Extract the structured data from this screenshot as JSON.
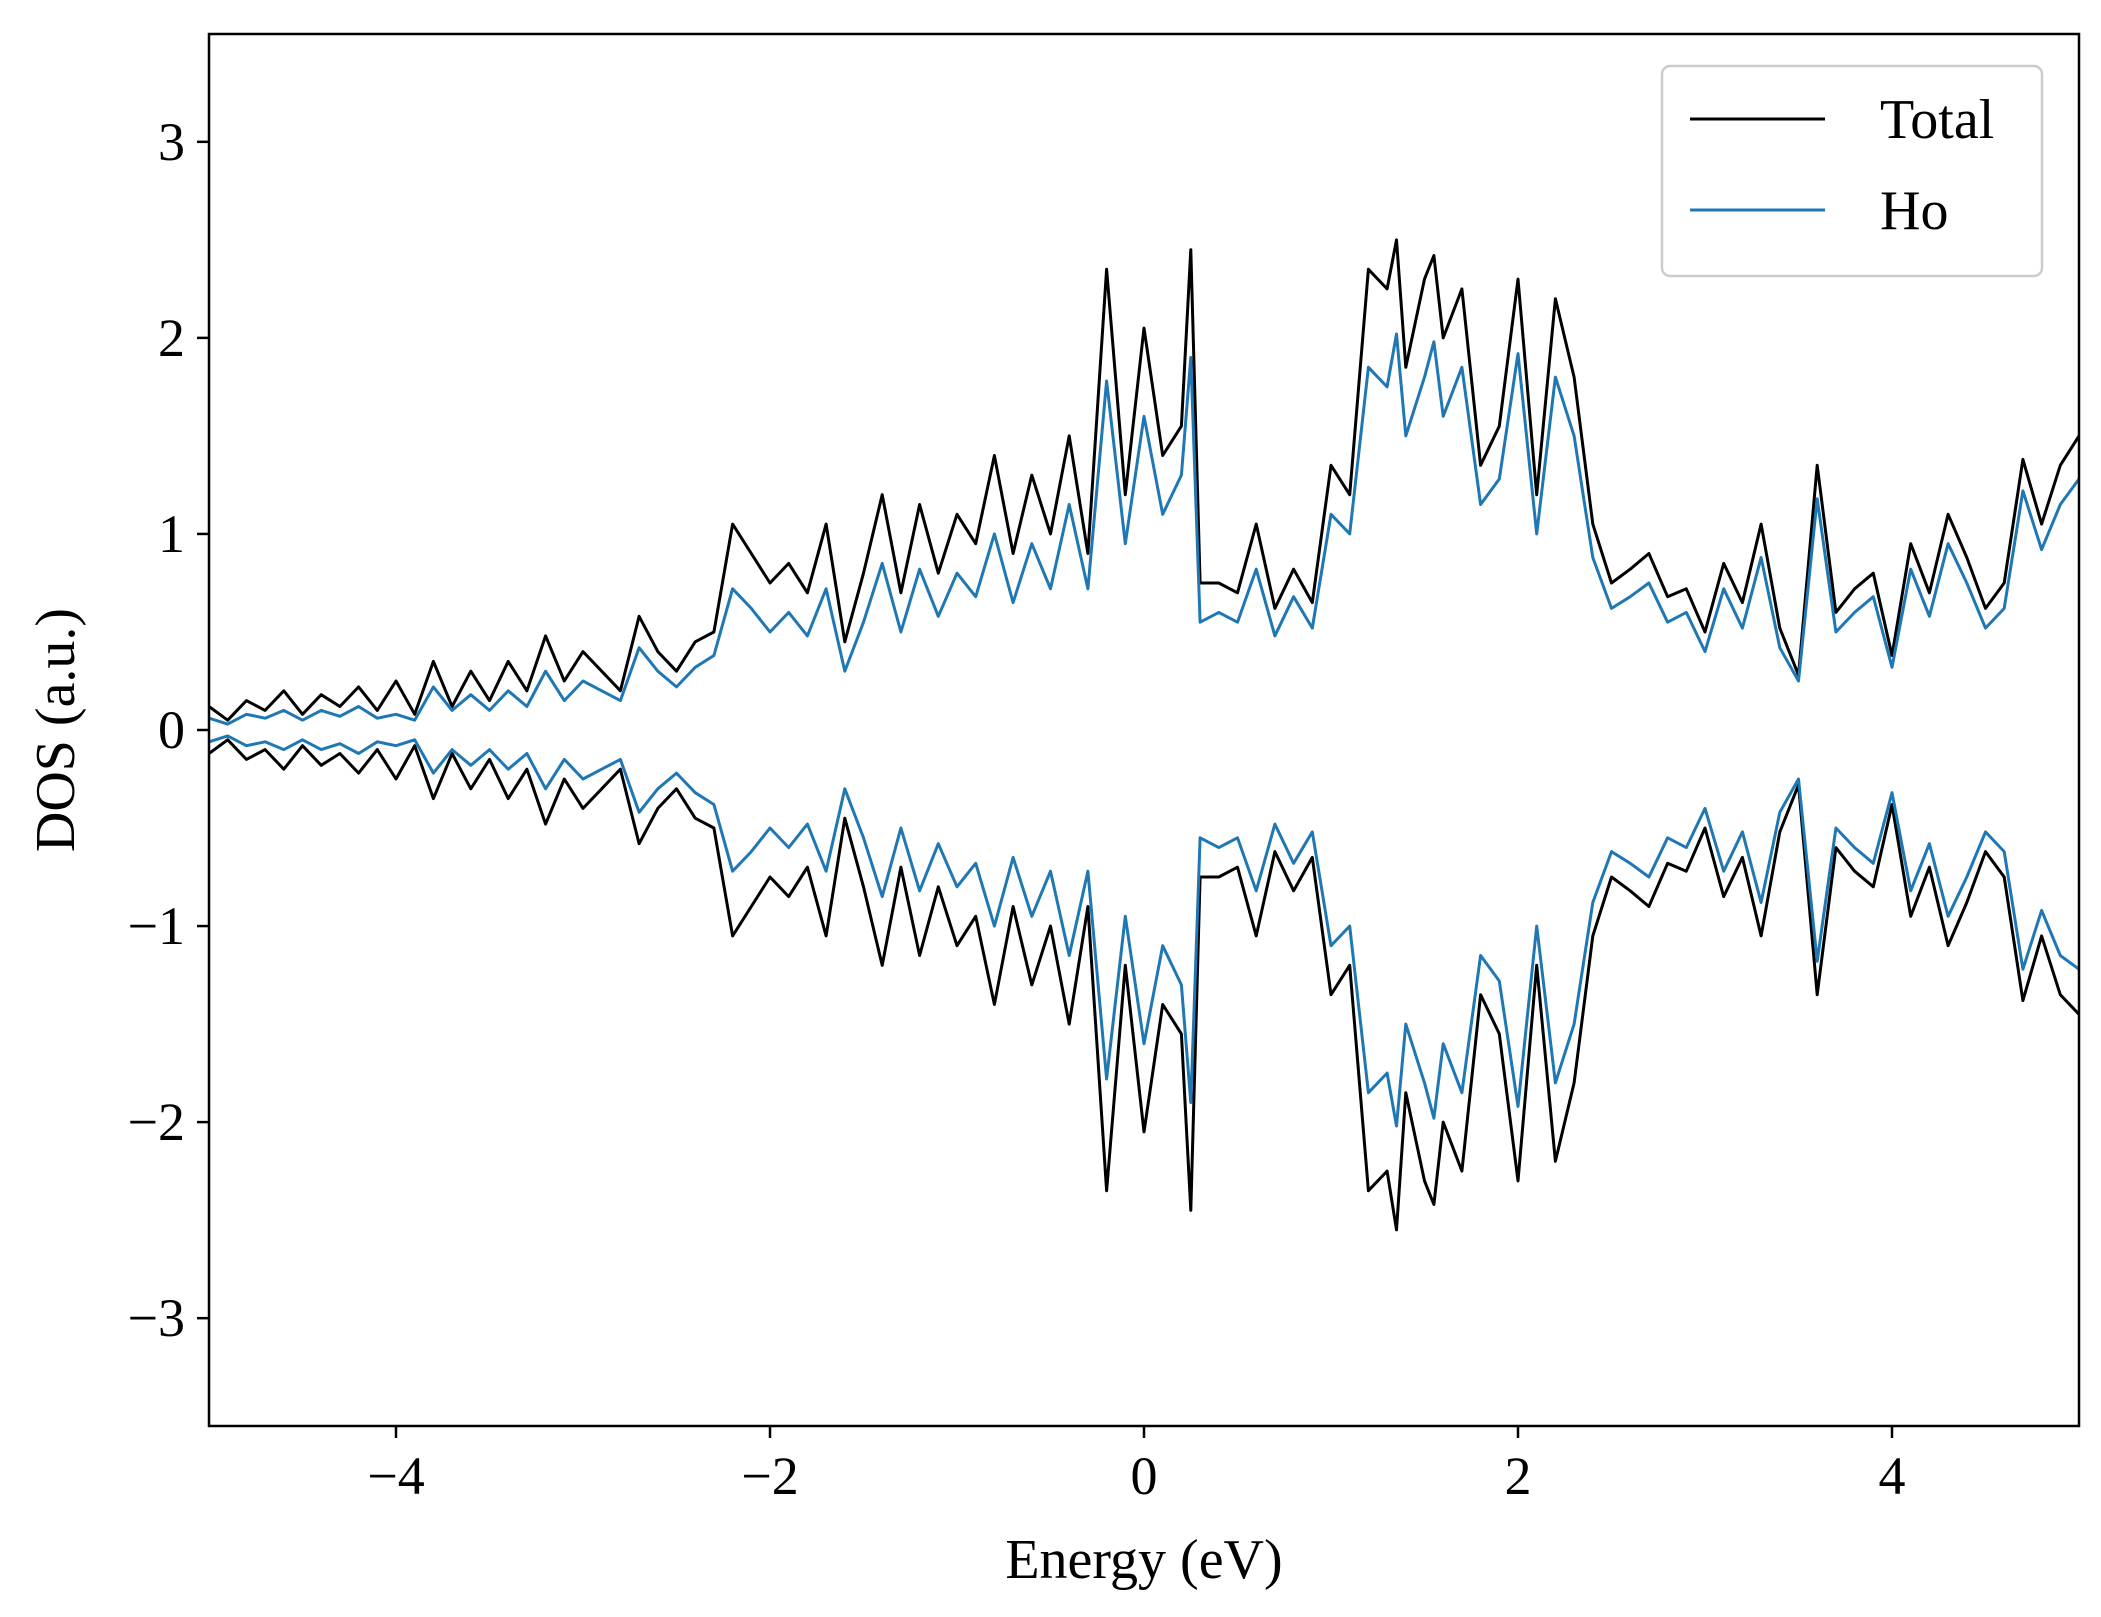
{
  "chart_data": {
    "type": "line",
    "title": "",
    "xlabel": "Energy (eV)",
    "ylabel": "DOS (a.u.)",
    "xlim": [
      -5,
      5
    ],
    "ylim": [
      -3.55,
      3.55
    ],
    "x_ticks": [
      -4,
      -2,
      0,
      2,
      4
    ],
    "y_ticks": [
      -3,
      -2,
      -1,
      0,
      1,
      2,
      3
    ],
    "x_tick_labels": [
      "−4",
      "−2",
      "0",
      "2",
      "4"
    ],
    "y_tick_labels": [
      "−3",
      "−2",
      "−1",
      "0",
      "1",
      "2",
      "3"
    ],
    "grid": false,
    "legend_position": "top-right",
    "series": [
      {
        "name": "Total",
        "color": "#000000",
        "x": [
          -5.0,
          -4.9,
          -4.8,
          -4.7,
          -4.6,
          -4.5,
          -4.4,
          -4.3,
          -4.2,
          -4.1,
          -4.0,
          -3.9,
          -3.8,
          -3.7,
          -3.6,
          -3.5,
          -3.4,
          -3.3,
          -3.2,
          -3.1,
          -3.0,
          -2.9,
          -2.8,
          -2.7,
          -2.6,
          -2.5,
          -2.4,
          -2.3,
          -2.2,
          -2.1,
          -2.0,
          -1.9,
          -1.8,
          -1.7,
          -1.6,
          -1.5,
          -1.4,
          -1.3,
          -1.2,
          -1.1,
          -1.0,
          -0.9,
          -0.8,
          -0.7,
          -0.6,
          -0.5,
          -0.4,
          -0.3,
          -0.2,
          -0.1,
          0.0,
          0.1,
          0.2,
          0.25,
          0.3,
          0.4,
          0.5,
          0.6,
          0.7,
          0.8,
          0.9,
          1.0,
          1.1,
          1.2,
          1.3,
          1.35,
          1.4,
          1.5,
          1.55,
          1.6,
          1.7,
          1.8,
          1.9,
          2.0,
          2.1,
          2.2,
          2.3,
          2.4,
          2.5,
          2.6,
          2.7,
          2.8,
          2.9,
          3.0,
          3.1,
          3.2,
          3.3,
          3.4,
          3.5,
          3.6,
          3.7,
          3.8,
          3.9,
          4.0,
          4.1,
          4.2,
          4.3,
          4.4,
          4.5,
          4.6,
          4.7,
          4.8,
          4.9,
          5.0
        ],
        "up": [
          0.12,
          0.05,
          0.15,
          0.1,
          0.2,
          0.08,
          0.18,
          0.12,
          0.22,
          0.1,
          0.25,
          0.08,
          0.35,
          0.12,
          0.3,
          0.15,
          0.35,
          0.2,
          0.48,
          0.25,
          0.4,
          0.3,
          0.2,
          0.58,
          0.4,
          0.3,
          0.45,
          0.5,
          1.05,
          0.9,
          0.75,
          0.85,
          0.7,
          1.05,
          0.45,
          0.8,
          1.2,
          0.7,
          1.15,
          0.8,
          1.1,
          0.95,
          1.4,
          0.9,
          1.3,
          1.0,
          1.5,
          0.9,
          2.35,
          1.2,
          2.05,
          1.4,
          1.55,
          2.45,
          0.75,
          0.75,
          0.7,
          1.05,
          0.62,
          0.82,
          0.65,
          1.35,
          1.2,
          2.35,
          2.25,
          2.5,
          1.85,
          2.3,
          2.42,
          2.0,
          2.25,
          1.35,
          1.55,
          2.3,
          1.2,
          2.2,
          1.8,
          1.05,
          0.75,
          0.82,
          0.9,
          0.68,
          0.72,
          0.5,
          0.85,
          0.65,
          1.05,
          0.52,
          0.28,
          1.35,
          0.6,
          0.72,
          0.8,
          0.38,
          0.95,
          0.7,
          1.1,
          0.88,
          0.62,
          0.75,
          1.38,
          1.05,
          1.35,
          1.5
        ],
        "down": [
          -0.12,
          -0.05,
          -0.15,
          -0.1,
          -0.2,
          -0.08,
          -0.18,
          -0.12,
          -0.22,
          -0.1,
          -0.25,
          -0.08,
          -0.35,
          -0.12,
          -0.3,
          -0.15,
          -0.35,
          -0.2,
          -0.48,
          -0.25,
          -0.4,
          -0.3,
          -0.2,
          -0.58,
          -0.4,
          -0.3,
          -0.45,
          -0.5,
          -1.05,
          -0.9,
          -0.75,
          -0.85,
          -0.7,
          -1.05,
          -0.45,
          -0.8,
          -1.2,
          -0.7,
          -1.15,
          -0.8,
          -1.1,
          -0.95,
          -1.4,
          -0.9,
          -1.3,
          -1.0,
          -1.5,
          -0.9,
          -2.35,
          -1.2,
          -2.05,
          -1.4,
          -1.55,
          -2.45,
          -0.75,
          -0.75,
          -0.7,
          -1.05,
          -0.62,
          -0.82,
          -0.65,
          -1.35,
          -1.2,
          -2.35,
          -2.25,
          -2.55,
          -1.85,
          -2.3,
          -2.42,
          -2.0,
          -2.25,
          -1.35,
          -1.55,
          -2.3,
          -1.2,
          -2.2,
          -1.8,
          -1.05,
          -0.75,
          -0.82,
          -0.9,
          -0.68,
          -0.72,
          -0.5,
          -0.85,
          -0.65,
          -1.05,
          -0.52,
          -0.28,
          -1.35,
          -0.6,
          -0.72,
          -0.8,
          -0.38,
          -0.95,
          -0.7,
          -1.1,
          -0.88,
          -0.62,
          -0.75,
          -1.38,
          -1.05,
          -1.35,
          -1.45
        ]
      },
      {
        "name": "Ho",
        "color": "#1f77b4",
        "x": [
          -5.0,
          -4.9,
          -4.8,
          -4.7,
          -4.6,
          -4.5,
          -4.4,
          -4.3,
          -4.2,
          -4.1,
          -4.0,
          -3.9,
          -3.8,
          -3.7,
          -3.6,
          -3.5,
          -3.4,
          -3.3,
          -3.2,
          -3.1,
          -3.0,
          -2.9,
          -2.8,
          -2.7,
          -2.6,
          -2.5,
          -2.4,
          -2.3,
          -2.2,
          -2.1,
          -2.0,
          -1.9,
          -1.8,
          -1.7,
          -1.6,
          -1.5,
          -1.4,
          -1.3,
          -1.2,
          -1.1,
          -1.0,
          -0.9,
          -0.8,
          -0.7,
          -0.6,
          -0.5,
          -0.4,
          -0.3,
          -0.2,
          -0.1,
          0.0,
          0.1,
          0.2,
          0.25,
          0.3,
          0.4,
          0.5,
          0.6,
          0.7,
          0.8,
          0.9,
          1.0,
          1.1,
          1.2,
          1.3,
          1.35,
          1.4,
          1.5,
          1.55,
          1.6,
          1.7,
          1.8,
          1.9,
          2.0,
          2.1,
          2.2,
          2.3,
          2.4,
          2.5,
          2.6,
          2.7,
          2.8,
          2.9,
          3.0,
          3.1,
          3.2,
          3.3,
          3.4,
          3.5,
          3.6,
          3.7,
          3.8,
          3.9,
          4.0,
          4.1,
          4.2,
          4.3,
          4.4,
          4.5,
          4.6,
          4.7,
          4.8,
          4.9,
          5.0
        ],
        "up": [
          0.06,
          0.03,
          0.08,
          0.06,
          0.1,
          0.05,
          0.1,
          0.07,
          0.12,
          0.06,
          0.08,
          0.05,
          0.22,
          0.1,
          0.18,
          0.1,
          0.2,
          0.12,
          0.3,
          0.15,
          0.25,
          0.2,
          0.15,
          0.42,
          0.3,
          0.22,
          0.32,
          0.38,
          0.72,
          0.62,
          0.5,
          0.6,
          0.48,
          0.72,
          0.3,
          0.55,
          0.85,
          0.5,
          0.82,
          0.58,
          0.8,
          0.68,
          1.0,
          0.65,
          0.95,
          0.72,
          1.15,
          0.72,
          1.78,
          0.95,
          1.6,
          1.1,
          1.3,
          1.9,
          0.55,
          0.6,
          0.55,
          0.82,
          0.48,
          0.68,
          0.52,
          1.1,
          1.0,
          1.85,
          1.75,
          2.02,
          1.5,
          1.8,
          1.98,
          1.6,
          1.85,
          1.15,
          1.28,
          1.92,
          1.0,
          1.8,
          1.5,
          0.88,
          0.62,
          0.68,
          0.75,
          0.55,
          0.6,
          0.4,
          0.72,
          0.52,
          0.88,
          0.42,
          0.25,
          1.18,
          0.5,
          0.6,
          0.68,
          0.32,
          0.82,
          0.58,
          0.95,
          0.75,
          0.52,
          0.62,
          1.22,
          0.92,
          1.15,
          1.28
        ],
        "down": [
          -0.06,
          -0.03,
          -0.08,
          -0.06,
          -0.1,
          -0.05,
          -0.1,
          -0.07,
          -0.12,
          -0.06,
          -0.08,
          -0.05,
          -0.22,
          -0.1,
          -0.18,
          -0.1,
          -0.2,
          -0.12,
          -0.3,
          -0.15,
          -0.25,
          -0.2,
          -0.15,
          -0.42,
          -0.3,
          -0.22,
          -0.32,
          -0.38,
          -0.72,
          -0.62,
          -0.5,
          -0.6,
          -0.48,
          -0.72,
          -0.3,
          -0.55,
          -0.85,
          -0.5,
          -0.82,
          -0.58,
          -0.8,
          -0.68,
          -1.0,
          -0.65,
          -0.95,
          -0.72,
          -1.15,
          -0.72,
          -1.78,
          -0.95,
          -1.6,
          -1.1,
          -1.3,
          -1.9,
          -0.55,
          -0.6,
          -0.55,
          -0.82,
          -0.48,
          -0.68,
          -0.52,
          -1.1,
          -1.0,
          -1.85,
          -1.75,
          -2.02,
          -1.5,
          -1.8,
          -1.98,
          -1.6,
          -1.85,
          -1.15,
          -1.28,
          -1.92,
          -1.0,
          -1.8,
          -1.5,
          -0.88,
          -0.62,
          -0.68,
          -0.75,
          -0.55,
          -0.6,
          -0.4,
          -0.72,
          -0.52,
          -0.88,
          -0.42,
          -0.25,
          -1.18,
          -0.5,
          -0.6,
          -0.68,
          -0.32,
          -0.82,
          -0.58,
          -0.95,
          -0.75,
          -0.52,
          -0.62,
          -1.22,
          -0.92,
          -1.15,
          -1.22
        ]
      }
    ]
  }
}
